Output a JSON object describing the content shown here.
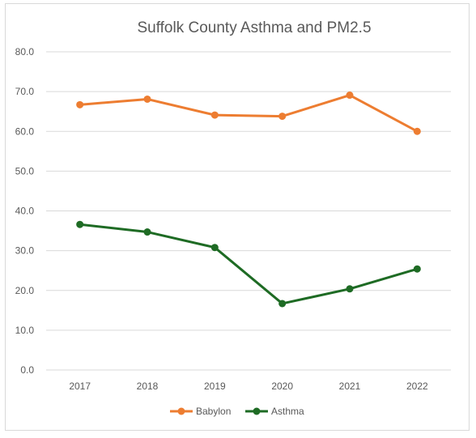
{
  "chart_data": {
    "type": "line",
    "title": "Suffolk County Asthma and PM2.5",
    "xlabel": "",
    "ylabel": "",
    "categories": [
      "2017",
      "2018",
      "2019",
      "2020",
      "2021",
      "2022"
    ],
    "y_ticks": [
      "0.0",
      "10.0",
      "20.0",
      "30.0",
      "40.0",
      "50.0",
      "60.0",
      "70.0",
      "80.0"
    ],
    "ylim": [
      0,
      80
    ],
    "grid": true,
    "legend_position": "bottom",
    "series": [
      {
        "name": "Babylon",
        "color": "#ed7d31",
        "values": [
          66.7,
          68.1,
          64.1,
          63.8,
          69.1,
          60.0
        ]
      },
      {
        "name": "Asthma",
        "color": "#1e6b24",
        "values": [
          36.6,
          34.7,
          30.8,
          16.7,
          20.4,
          25.4
        ]
      }
    ]
  }
}
